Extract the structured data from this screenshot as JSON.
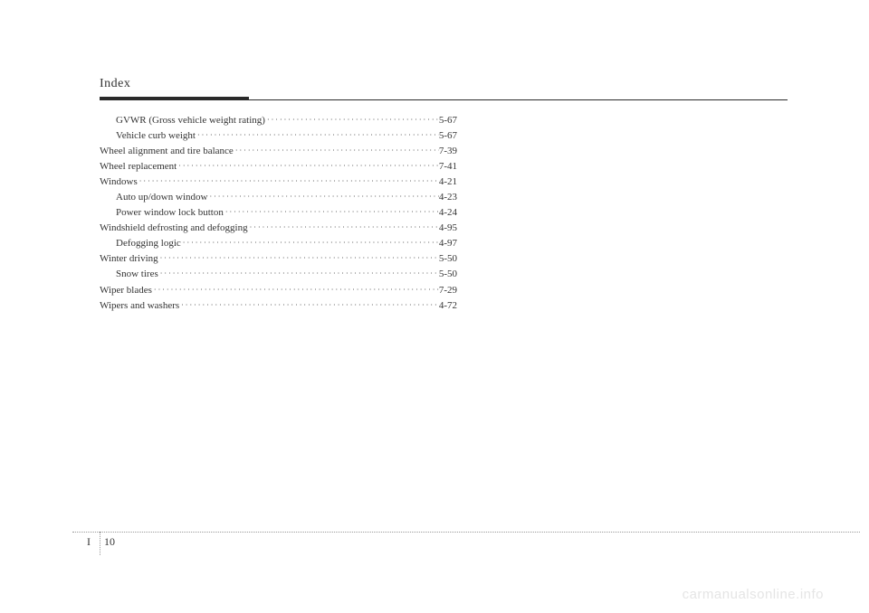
{
  "header": {
    "title": "Index"
  },
  "entries": [
    {
      "label": "GVWR (Gross vehicle weight rating)",
      "page": "5-67",
      "sub": true
    },
    {
      "label": "Vehicle curb weight",
      "page": "5-67",
      "sub": true
    },
    {
      "label": "Wheel alignment and tire balance",
      "page": "7-39",
      "sub": false
    },
    {
      "label": "Wheel replacement",
      "page": "7-41",
      "sub": false
    },
    {
      "label": "Windows",
      "page": "4-21",
      "sub": false
    },
    {
      "label": "Auto up/down window",
      "page": "4-23",
      "sub": true
    },
    {
      "label": "Power window lock button",
      "page": "4-24",
      "sub": true
    },
    {
      "label": "Windshield defrosting and defogging",
      "page": "4-95",
      "sub": false
    },
    {
      "label": "Defogging logic",
      "page": "4-97",
      "sub": true
    },
    {
      "label": "Winter driving",
      "page": "5-50",
      "sub": false
    },
    {
      "label": "Snow tires",
      "page": "5-50",
      "sub": true
    },
    {
      "label": "Wiper blades",
      "page": "7-29",
      "sub": false
    },
    {
      "label": "Wipers and washers",
      "page": "4-72",
      "sub": false
    }
  ],
  "footer": {
    "section": "I",
    "page_num": "10"
  },
  "watermark": "carmanualsonline.info"
}
